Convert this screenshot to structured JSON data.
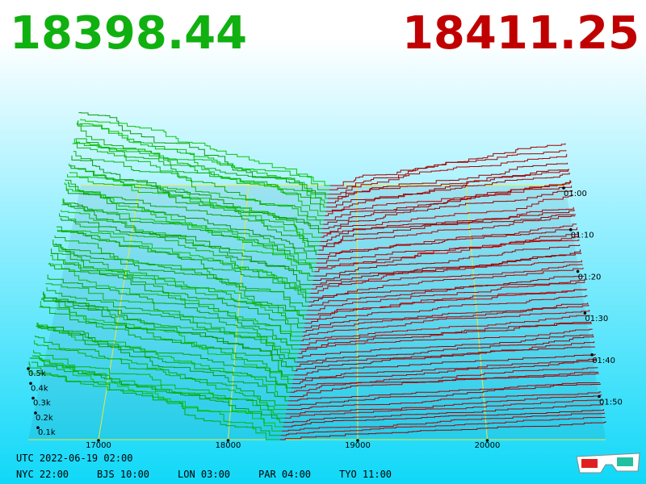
{
  "prices": {
    "bid": "18398.44",
    "ask": "18411.25"
  },
  "price_axis": [
    "17000",
    "18000",
    "19000",
    "20000"
  ],
  "volume_axis": [
    "0.5k",
    "0.4k",
    "0.3k",
    "0.2k",
    "0.1k"
  ],
  "time_axis": [
    "01:00",
    "01:10",
    "01:20",
    "01:30",
    "01:40",
    "01:50"
  ],
  "footer": {
    "utc": "UTC 2022-06-19 02:00",
    "clocks": [
      "NYC 22:00",
      "BJS 10:00",
      "LON 03:00",
      "PAR 04:00",
      "TYO 11:00"
    ]
  }
}
